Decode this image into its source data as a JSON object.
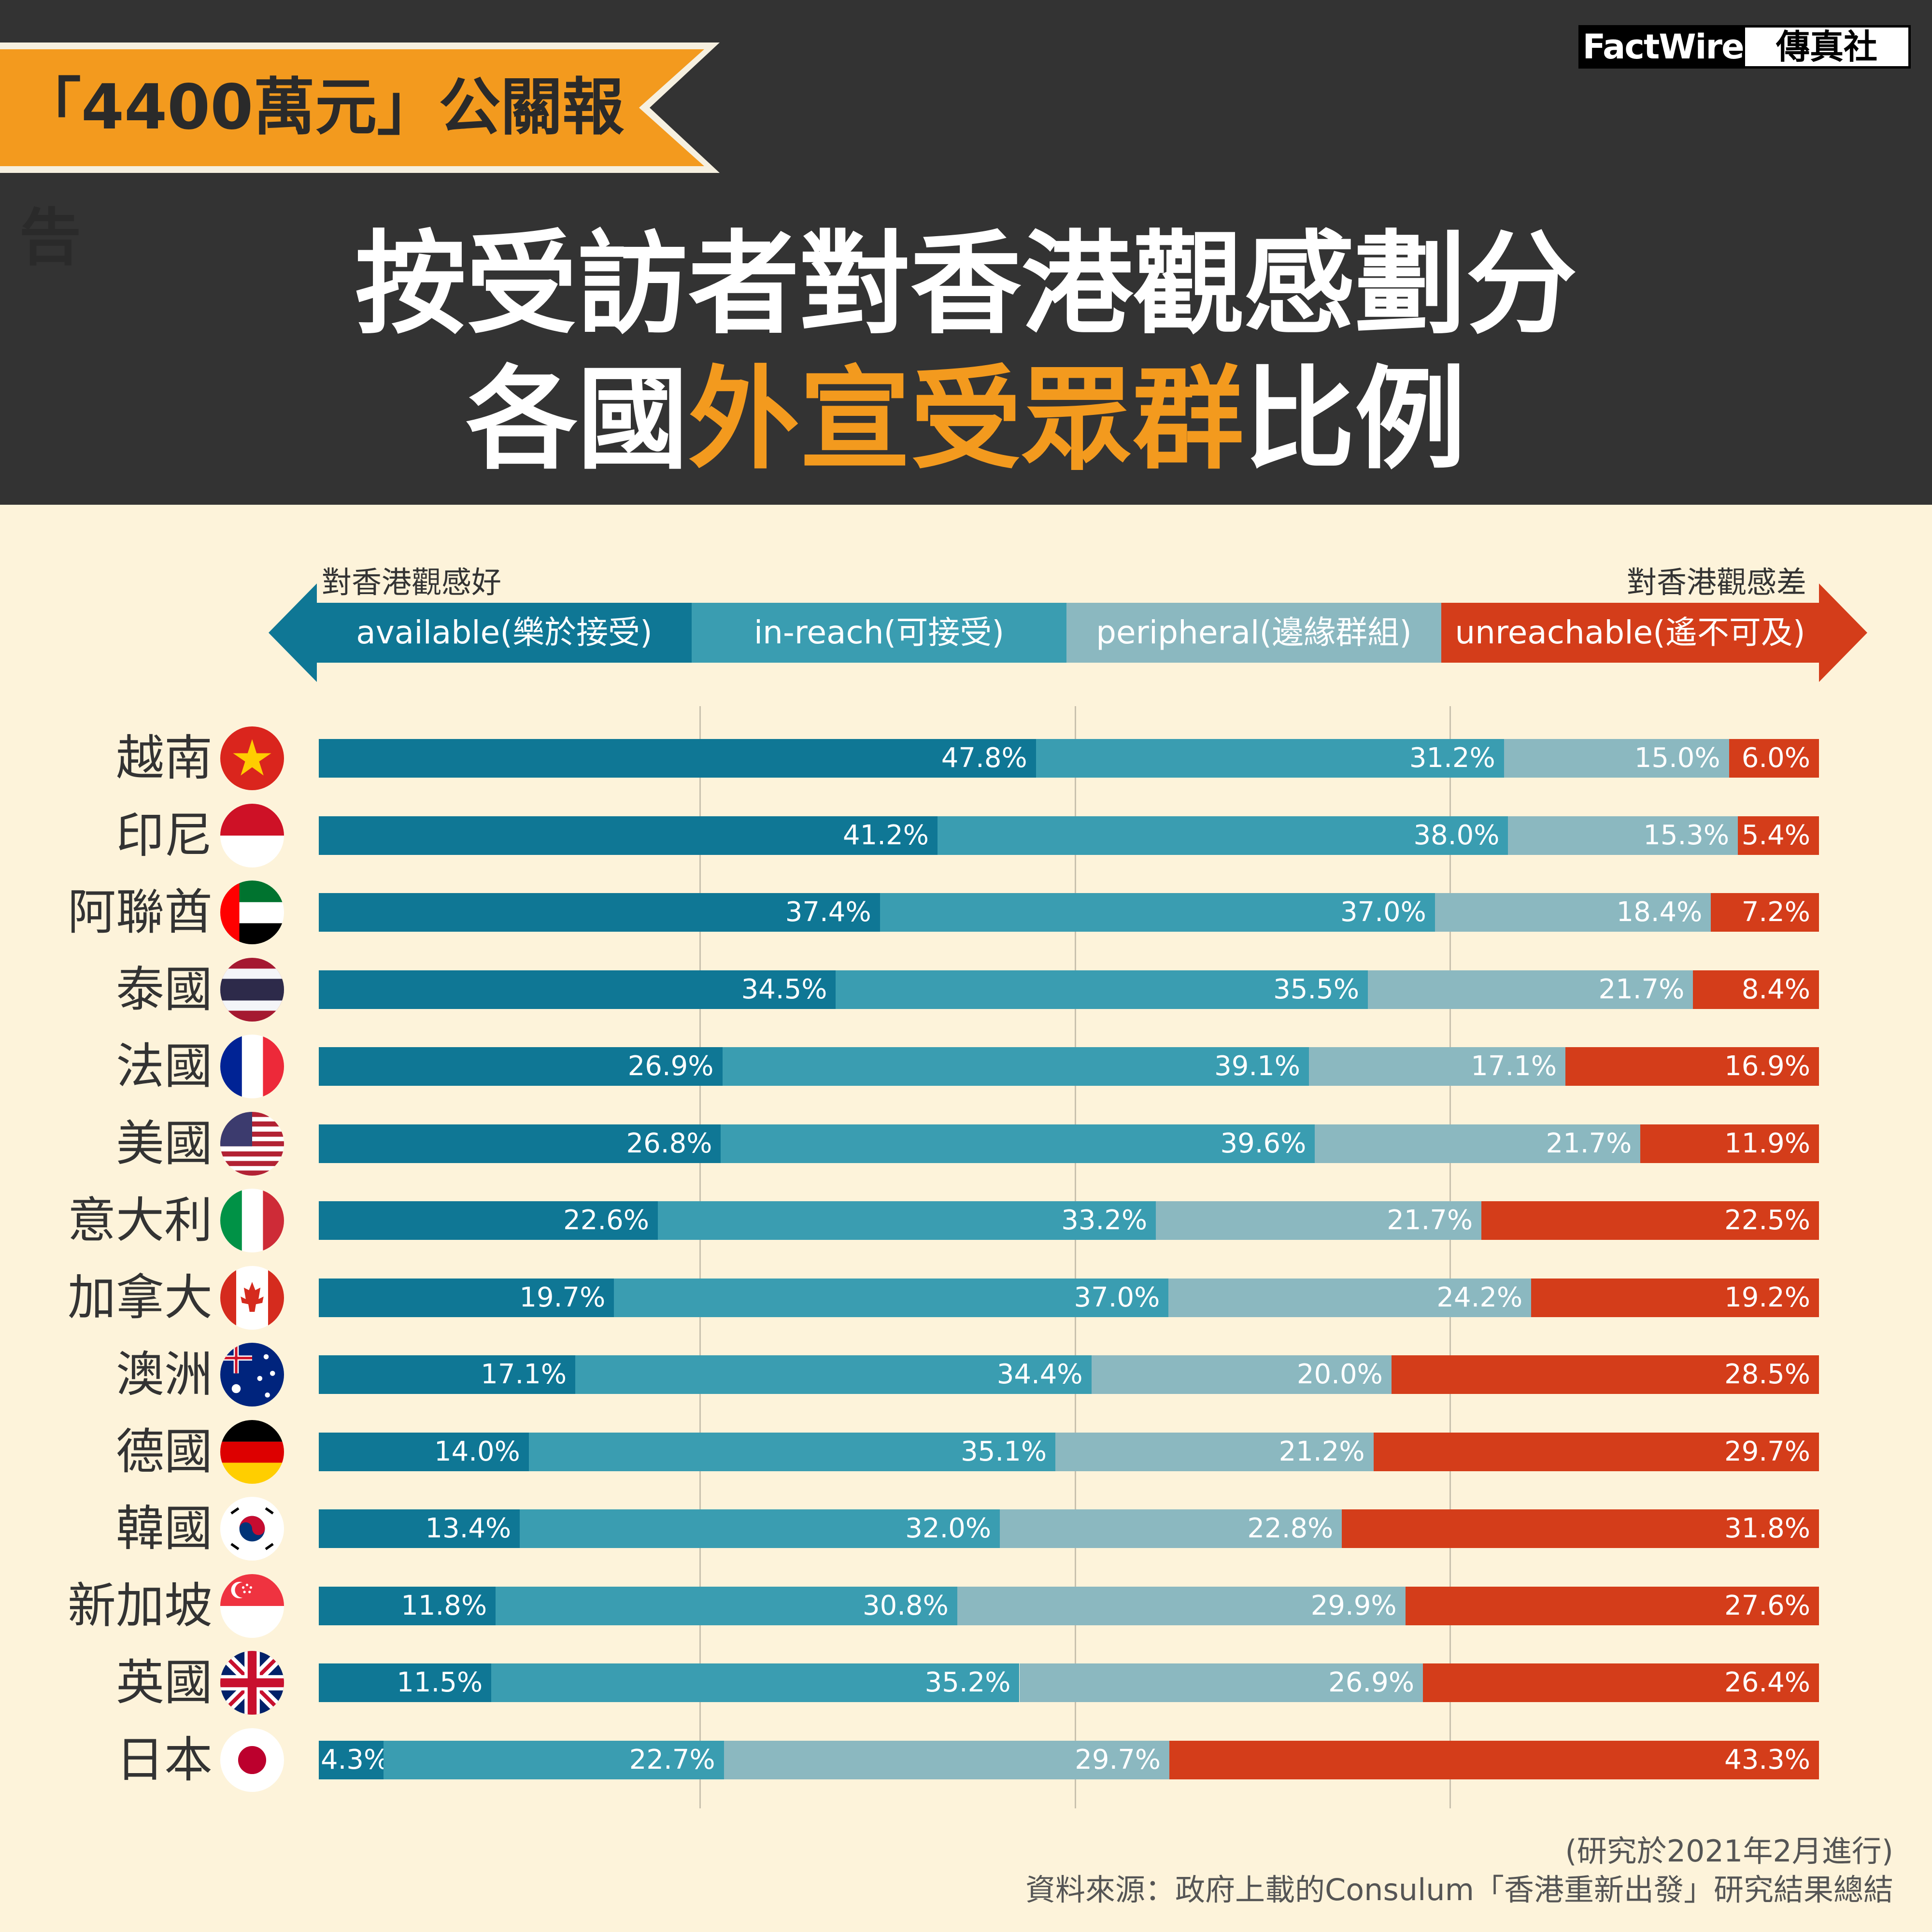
{
  "header": {
    "tag": "「4400萬元」公關報告",
    "logo_left": "FactWire",
    "logo_right": "傳真社",
    "title_line1": "按受訪者對香港觀感劃分",
    "title_line2_pre": "各國",
    "title_line2_highlight": "外宣受眾群",
    "title_line2_post": "比例"
  },
  "legend": {
    "left_note": "對香港觀感好",
    "right_note": "對香港觀感差"
  },
  "colors": {
    "available": "#0f7795",
    "in_reach": "#3a9db1",
    "peripheral": "#8bb8c0",
    "unreachable": "#d43d1a",
    "header_bg": "#333333",
    "accent": "#f39a1e",
    "page_bg": "#fdf3da"
  },
  "chart_data": {
    "type": "bar",
    "stacked": true,
    "orientation": "horizontal",
    "categories": [
      "越南",
      "印尼",
      "阿聯酋",
      "泰國",
      "法國",
      "美國",
      "意大利",
      "加拿大",
      "澳洲",
      "德國",
      "韓國",
      "新加坡",
      "英國",
      "日本"
    ],
    "series": [
      {
        "name": "available(樂於接受)",
        "values": [
          47.8,
          41.2,
          37.4,
          34.5,
          26.9,
          26.8,
          22.6,
          19.7,
          17.1,
          14.0,
          13.4,
          11.8,
          11.5,
          4.3
        ],
        "labels": [
          "47.8%",
          "41.2%",
          "37.4%",
          "34.5%",
          "26.9%",
          "26.8%",
          "22.6%",
          "19.7%",
          "17.1%",
          "14.0%",
          "13.4%",
          "11.8%",
          "11.5%",
          "4.3%"
        ]
      },
      {
        "name": "in-reach(可接受)",
        "values": [
          31.2,
          38.0,
          37.0,
          35.5,
          39.1,
          39.6,
          33.2,
          37.0,
          34.4,
          35.1,
          32.0,
          30.8,
          35.2,
          22.7
        ],
        "labels": [
          "31.2%",
          "38.0%",
          "37.0%",
          "35.5%",
          "39.1%",
          "39.6%",
          "33.2%",
          "37.0%",
          "34.4%",
          "35.1%",
          "32.0%",
          "30.8%",
          "35.2%",
          "22.7%"
        ]
      },
      {
        "name": "peripheral(邊緣群組)",
        "values": [
          15.0,
          15.3,
          18.4,
          21.7,
          17.1,
          21.7,
          21.7,
          24.2,
          20.0,
          21.2,
          22.8,
          29.9,
          26.9,
          29.7
        ],
        "labels": [
          "15.0%",
          "15.3%",
          "18.4%",
          "21.7%",
          "17.1%",
          "21.7%",
          "21.7%",
          "24.2%",
          "20.0%",
          "21.2%",
          "22.8%",
          "29.9%",
          "26.9%",
          "29.7%"
        ]
      },
      {
        "name": "unreachable(遙不可及)",
        "values": [
          6.0,
          5.4,
          7.2,
          8.4,
          16.9,
          11.9,
          22.5,
          19.2,
          28.5,
          29.7,
          31.8,
          27.6,
          26.4,
          43.3
        ],
        "labels": [
          "6.0%",
          "5.4%",
          "7.2%",
          "8.4%",
          "16.9%",
          "11.9%",
          "22.5%",
          "19.2%",
          "28.5%",
          "29.7%",
          "31.8%",
          "27.6%",
          "26.4%",
          "43.3%"
        ]
      }
    ],
    "xlim": [
      0,
      100
    ],
    "grid": true,
    "flags": [
      "vietnam-flag-icon",
      "indonesia-flag-icon",
      "uae-flag-icon",
      "thailand-flag-icon",
      "france-flag-icon",
      "usa-flag-icon",
      "italy-flag-icon",
      "canada-flag-icon",
      "australia-flag-icon",
      "germany-flag-icon",
      "korea-flag-icon",
      "singapore-flag-icon",
      "uk-flag-icon",
      "japan-flag-icon"
    ]
  },
  "footer": {
    "note": "(研究於2021年2月進行)",
    "source": "資料來源：政府上載的Consulum「香港重新出發」研究結果總結"
  }
}
